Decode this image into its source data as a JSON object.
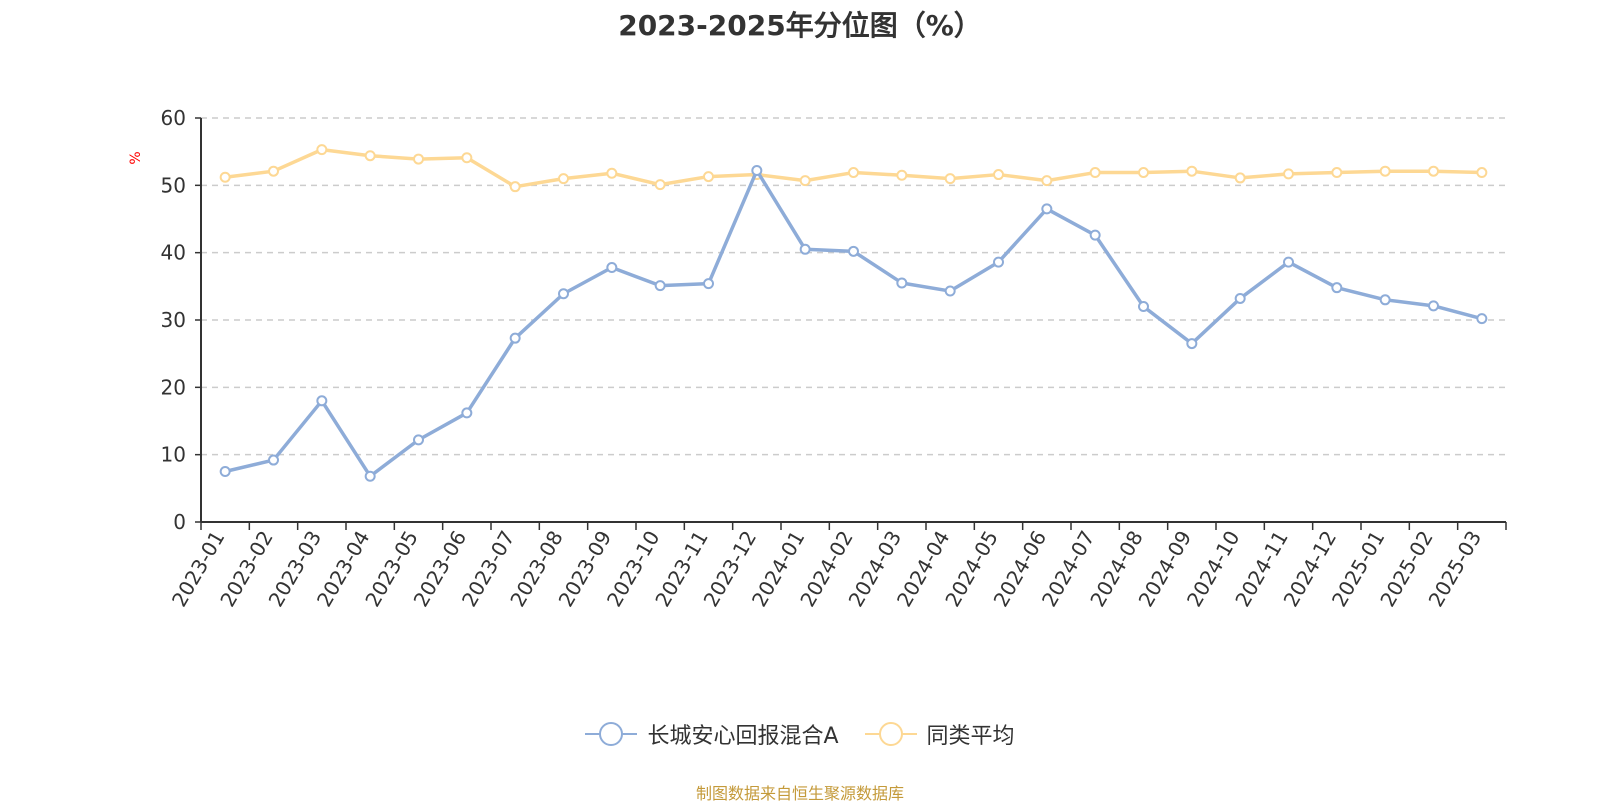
{
  "chart_data": {
    "type": "line",
    "title": "2023-2025年分位图（%）",
    "ylabel": "%",
    "xlabel": "",
    "ylim": [
      0,
      60
    ],
    "yticks": [
      0,
      10,
      20,
      30,
      40,
      50,
      60
    ],
    "grid": true,
    "legend_position": "bottom",
    "categories": [
      "2023-01",
      "2023-02",
      "2023-03",
      "2023-04",
      "2023-05",
      "2023-06",
      "2023-07",
      "2023-08",
      "2023-09",
      "2023-10",
      "2023-11",
      "2023-12",
      "2024-01",
      "2024-02",
      "2024-03",
      "2024-04",
      "2024-05",
      "2024-06",
      "2024-07",
      "2024-08",
      "2024-09",
      "2024-10",
      "2024-11",
      "2024-12",
      "2025-01",
      "2025-02",
      "2025-03"
    ],
    "series": [
      {
        "name": "长城安心回报混合A",
        "color": "#8eacd8",
        "values": [
          7.5,
          9.2,
          18.0,
          6.8,
          12.2,
          16.2,
          27.3,
          33.9,
          37.8,
          35.1,
          35.4,
          52.2,
          40.5,
          40.2,
          35.5,
          34.3,
          38.6,
          46.5,
          42.6,
          32.0,
          26.5,
          33.2,
          38.6,
          34.8,
          33.0,
          32.1,
          30.2
        ]
      },
      {
        "name": "同类平均",
        "color": "#fdd894",
        "values": [
          51.2,
          52.1,
          55.3,
          54.4,
          53.9,
          54.1,
          49.8,
          51.0,
          51.8,
          50.1,
          51.3,
          51.6,
          50.7,
          51.9,
          51.5,
          51.0,
          51.6,
          50.7,
          51.9,
          51.9,
          52.1,
          51.1,
          51.7,
          51.9,
          52.1,
          52.1,
          51.9
        ]
      }
    ]
  },
  "source": {
    "text": "制图数据来自恒生聚源数据库",
    "color": "#c49a3a"
  },
  "axis_unit_color": "#ff0000"
}
